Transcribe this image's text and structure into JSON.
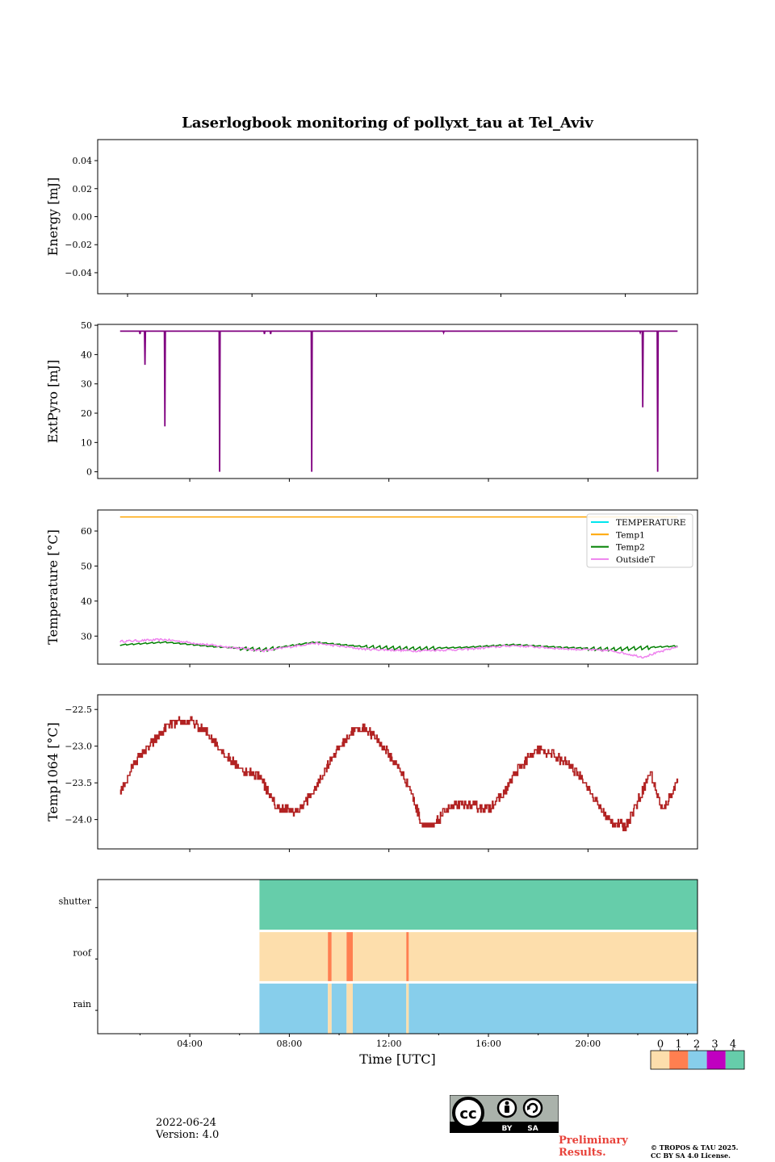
{
  "title": "Laserlogbook monitoring of pollyxt_tau at Tel_Aviv",
  "footer": {
    "date": "2022-06-24",
    "version": "Version: 4.0",
    "preliminary_line1": "Preliminary",
    "preliminary_line2": "Results.",
    "copyright_line1": "© TROPOS & TAU 2025.",
    "copyright_line2": "CC BY SA 4.0 License.",
    "license_badge": {
      "icon": "cc-by-sa-icon",
      "labels": [
        "BY",
        "SA"
      ]
    }
  },
  "chart_data": [
    {
      "type": "line",
      "panel": "energy",
      "ylabel": "Energy [mJ]",
      "ylim": [
        -0.055,
        0.055
      ],
      "yticks": [
        -0.04,
        -0.02,
        0.0,
        0.02,
        0.04
      ],
      "ytick_labels": [
        "−0.04",
        "−0.02",
        "0.00",
        "0.02",
        "0.04"
      ],
      "xlim_hours": [
        0.3,
        24.4
      ],
      "series": []
    },
    {
      "type": "line",
      "panel": "extpyro",
      "ylabel": "ExtPyro [mJ]",
      "ylim": [
        -2.3,
        50.3
      ],
      "yticks": [
        0,
        10,
        20,
        30,
        40,
        50
      ],
      "ytick_labels": [
        "0",
        "10",
        "20",
        "30",
        "40",
        "50"
      ],
      "xlim_hours": [
        0.3,
        24.4
      ],
      "color": "#800080",
      "baseline": 48,
      "series_range_hours": [
        1.2,
        23.6
      ],
      "dips": [
        {
          "t": 2.0,
          "v": 47.0
        },
        {
          "t": 2.2,
          "v": 36.5
        },
        {
          "t": 3.0,
          "v": 15.5
        },
        {
          "t": 5.2,
          "v": 0.0
        },
        {
          "t": 7.0,
          "v": 47.0
        },
        {
          "t": 7.25,
          "v": 47.0
        },
        {
          "t": 8.9,
          "v": 0.0
        },
        {
          "t": 14.2,
          "v": 47.5
        },
        {
          "t": 22.1,
          "v": 47.5
        },
        {
          "t": 22.2,
          "v": 22.0
        },
        {
          "t": 22.8,
          "v": 0.0
        }
      ]
    },
    {
      "type": "line",
      "panel": "temperature",
      "ylabel": "Temperature [°C]",
      "ylim": [
        22.0,
        66.0
      ],
      "yticks": [
        30,
        40,
        50,
        60
      ],
      "ytick_labels": [
        "30",
        "40",
        "50",
        "60"
      ],
      "xlim_hours": [
        0.3,
        24.4
      ],
      "legend_position": "upper right",
      "series": [
        {
          "name": "TEMPERATURE",
          "color": "#00e5ee",
          "values": []
        },
        {
          "name": "Temp1",
          "color": "#ffa500",
          "constant": 64.0
        },
        {
          "name": "Temp2",
          "color": "#008000",
          "x_hours": [
            1.2,
            3,
            5,
            7,
            9,
            11,
            13,
            15,
            17,
            19,
            21,
            23.6
          ],
          "values": [
            27.5,
            28.3,
            27.0,
            26.2,
            28.3,
            27.0,
            26.5,
            26.8,
            27.6,
            26.8,
            26.3,
            27.2
          ]
        },
        {
          "name": "OutsideT",
          "color": "#ee82ee",
          "x_hours": [
            1.2,
            3,
            5,
            7,
            9,
            11,
            13,
            15,
            17,
            19,
            21,
            22.2,
            23.6
          ],
          "values": [
            28.5,
            29.0,
            27.3,
            25.8,
            28.0,
            26.3,
            25.8,
            26.2,
            27.3,
            26.4,
            25.8,
            24.0,
            27.0
          ]
        }
      ]
    },
    {
      "type": "line",
      "panel": "temp1064",
      "ylabel": "Temp1064 [°C]",
      "ylim": [
        -24.4,
        -22.3
      ],
      "yticks": [
        -24.0,
        -23.5,
        -23.0,
        -22.5
      ],
      "ytick_labels": [
        "−24.0",
        "−23.5",
        "−23.0",
        "−22.5"
      ],
      "xlim_hours": [
        0.3,
        24.4
      ],
      "color": "#b22222",
      "x_hours": [
        1.2,
        1.8,
        2.5,
        3.2,
        4.0,
        4.8,
        5.5,
        6.2,
        6.8,
        7.5,
        8.3,
        9.0,
        9.7,
        10.5,
        11.0,
        11.5,
        12.2,
        12.8,
        13.3,
        13.8,
        14.3,
        15.0,
        16.0,
        16.5,
        17.2,
        18.0,
        18.5,
        19.2,
        19.8,
        20.3,
        20.8,
        21.5,
        22.0,
        22.5,
        23.0,
        23.6
      ],
      "values": [
        -23.65,
        -23.2,
        -22.95,
        -22.7,
        -22.65,
        -22.85,
        -23.15,
        -23.35,
        -23.4,
        -23.85,
        -23.9,
        -23.6,
        -23.15,
        -22.8,
        -22.75,
        -22.9,
        -23.2,
        -23.55,
        -24.05,
        -24.1,
        -23.85,
        -23.8,
        -23.85,
        -23.7,
        -23.3,
        -23.05,
        -23.1,
        -23.25,
        -23.45,
        -23.75,
        -24.0,
        -24.1,
        -23.75,
        -23.35,
        -23.9,
        -23.45
      ]
    },
    {
      "type": "heatmap",
      "panel": "status",
      "xlabel": "Time [UTC]",
      "xlim_hours": [
        0.3,
        24.4
      ],
      "xtick_hours": [
        4,
        8,
        12,
        16,
        20
      ],
      "xtick_labels": [
        "04:00",
        "08:00",
        "12:00",
        "16:00",
        "20:00"
      ],
      "rows": [
        "shutter",
        "roof",
        "rain"
      ],
      "data_start_hour": 6.8,
      "row_values": {
        "shutter": [
          {
            "from": 6.8,
            "to": 24.4,
            "value": 4
          }
        ],
        "roof": [
          {
            "from": 6.8,
            "to": 9.55,
            "value": 0
          },
          {
            "from": 9.55,
            "to": 9.7,
            "value": 1
          },
          {
            "from": 9.7,
            "to": 10.3,
            "value": 0
          },
          {
            "from": 10.3,
            "to": 10.55,
            "value": 1
          },
          {
            "from": 10.55,
            "to": 12.7,
            "value": 0
          },
          {
            "from": 12.7,
            "to": 12.8,
            "value": 1
          },
          {
            "from": 12.8,
            "to": 24.4,
            "value": 0
          }
        ],
        "rain": [
          {
            "from": 6.8,
            "to": 9.55,
            "value": 2
          },
          {
            "from": 9.55,
            "to": 9.7,
            "value": 0
          },
          {
            "from": 9.7,
            "to": 10.3,
            "value": 2
          },
          {
            "from": 10.3,
            "to": 10.55,
            "value": 0
          },
          {
            "from": 10.55,
            "to": 12.7,
            "value": 2
          },
          {
            "from": 12.7,
            "to": 12.8,
            "value": 0
          },
          {
            "from": 12.8,
            "to": 24.4,
            "value": 2
          }
        ]
      },
      "colorbar": {
        "values": [
          0,
          1,
          2,
          3,
          4
        ],
        "labels": [
          "0",
          "1",
          "2",
          "3",
          "4"
        ],
        "colors": [
          "#fddeac",
          "#ff7f50",
          "#87ceeb",
          "#c000c0",
          "#66cdaa"
        ]
      }
    }
  ]
}
